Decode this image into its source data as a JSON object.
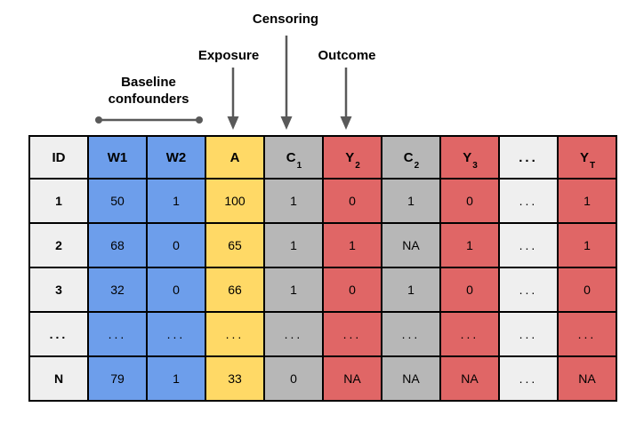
{
  "annotations": {
    "censoring": "Censoring",
    "exposure": "Exposure",
    "outcome": "Outcome",
    "baseline_line1": "Baseline",
    "baseline_line2": "confounders"
  },
  "colors": {
    "blue": "#6D9EEB",
    "yellow": "#FFD966",
    "gray": "#B7B7B7",
    "red": "#E06666",
    "light": "#EFEFEF",
    "border": "#000000",
    "arrow": "#595959",
    "text": "#000000",
    "background": "#FFFFFF"
  },
  "table": {
    "columns": [
      {
        "key": "id",
        "label": "ID",
        "sub": "",
        "color": "light"
      },
      {
        "key": "w1",
        "label": "W1",
        "sub": "",
        "color": "blue"
      },
      {
        "key": "w2",
        "label": "W2",
        "sub": "",
        "color": "blue"
      },
      {
        "key": "a",
        "label": "A",
        "sub": "",
        "color": "yellow"
      },
      {
        "key": "c1",
        "label": "C",
        "sub": "1",
        "color": "gray"
      },
      {
        "key": "y2",
        "label": "Y",
        "sub": "2",
        "color": "red"
      },
      {
        "key": "c2",
        "label": "C",
        "sub": "2",
        "color": "gray"
      },
      {
        "key": "y3",
        "label": "Y",
        "sub": "3",
        "color": "red"
      },
      {
        "key": "ellipsis",
        "label": "...",
        "sub": "",
        "color": "light"
      },
      {
        "key": "yt",
        "label": "Y",
        "sub": "T",
        "color": "red"
      }
    ],
    "rows": [
      [
        "1",
        "50",
        "1",
        "100",
        "1",
        "0",
        "1",
        "0",
        "...",
        "1"
      ],
      [
        "2",
        "68",
        "0",
        "65",
        "1",
        "1",
        "NA",
        "1",
        "...",
        "1"
      ],
      [
        "3",
        "32",
        "0",
        "66",
        "1",
        "0",
        "1",
        "0",
        "...",
        "0"
      ],
      [
        "...",
        "...",
        "...",
        "...",
        "...",
        "...",
        "...",
        "...",
        "...",
        "..."
      ],
      [
        "N",
        "79",
        "1",
        "33",
        "0",
        "NA",
        "NA",
        "NA",
        "...",
        "NA"
      ]
    ]
  }
}
